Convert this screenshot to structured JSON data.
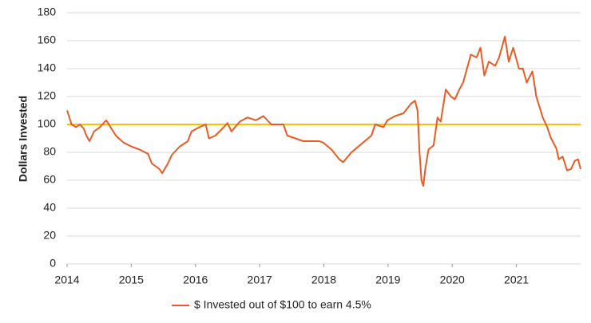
{
  "chart_data": {
    "type": "line",
    "y_label": "Dollars Invested",
    "x": [
      2014.0,
      2014.07,
      2014.14,
      2014.2,
      2014.26,
      2014.3,
      2014.35,
      2014.42,
      2014.51,
      2014.61,
      2014.76,
      2014.88,
      2015.01,
      2015.13,
      2015.26,
      2015.32,
      2015.44,
      2015.48,
      2015.57,
      2015.63,
      2015.75,
      2015.88,
      2015.94,
      2016.06,
      2016.16,
      2016.21,
      2016.31,
      2016.44,
      2016.5,
      2016.56,
      2016.69,
      2016.81,
      2016.94,
      2017.06,
      2017.18,
      2017.37,
      2017.43,
      2017.68,
      2017.93,
      2017.99,
      2018.12,
      2018.24,
      2018.3,
      2018.43,
      2018.61,
      2018.74,
      2018.8,
      2018.93,
      2018.99,
      2019.11,
      2019.24,
      2019.36,
      2019.42,
      2019.46,
      2019.49,
      2019.52,
      2019.55,
      2019.58,
      2019.63,
      2019.71,
      2019.77,
      2019.82,
      2019.9,
      2019.98,
      2020.04,
      2020.11,
      2020.17,
      2020.23,
      2020.29,
      2020.38,
      2020.44,
      2020.5,
      2020.57,
      2020.67,
      2020.73,
      2020.82,
      2020.88,
      2020.95,
      2021.04,
      2021.1,
      2021.16,
      2021.25,
      2021.31,
      2021.41,
      2021.48,
      2021.54,
      2021.62,
      2021.66,
      2021.72,
      2021.79,
      2021.85,
      2021.91,
      2021.96,
      2022.0
    ],
    "series": [
      {
        "name": "$ Invested out of $100 to earn 4.5%",
        "color": "#ec5a24",
        "values": [
          110,
          100,
          98,
          100,
          97,
          92,
          88,
          95,
          98,
          103,
          92,
          87,
          84,
          82,
          79,
          72,
          68,
          65,
          72,
          78,
          84,
          88,
          95,
          98,
          100,
          90,
          92,
          98,
          101,
          95,
          102,
          105,
          103,
          106,
          100,
          100,
          92,
          88,
          88,
          87,
          82,
          75,
          73,
          80,
          87,
          92,
          100,
          98,
          103,
          106,
          108,
          115,
          117,
          110,
          80,
          60,
          56,
          68,
          82,
          85,
          105,
          102,
          125,
          120,
          118,
          125,
          130,
          140,
          150,
          148,
          155,
          135,
          145,
          142,
          148,
          163,
          145,
          155,
          140,
          140,
          130,
          138,
          120,
          105,
          98,
          90,
          83,
          75,
          77,
          67,
          68,
          74,
          75,
          68
        ]
      }
    ],
    "reference_line": {
      "value": 100,
      "color": "#ffc000"
    },
    "xlim": [
      2014,
      2022
    ],
    "xticks": [
      2014,
      2015,
      2016,
      2017,
      2018,
      2019,
      2020,
      2021
    ],
    "ylim": [
      0,
      180
    ],
    "yticks": [
      0,
      20,
      40,
      60,
      80,
      100,
      120,
      140,
      160,
      180
    ],
    "grid": true,
    "legend": "bottom"
  }
}
